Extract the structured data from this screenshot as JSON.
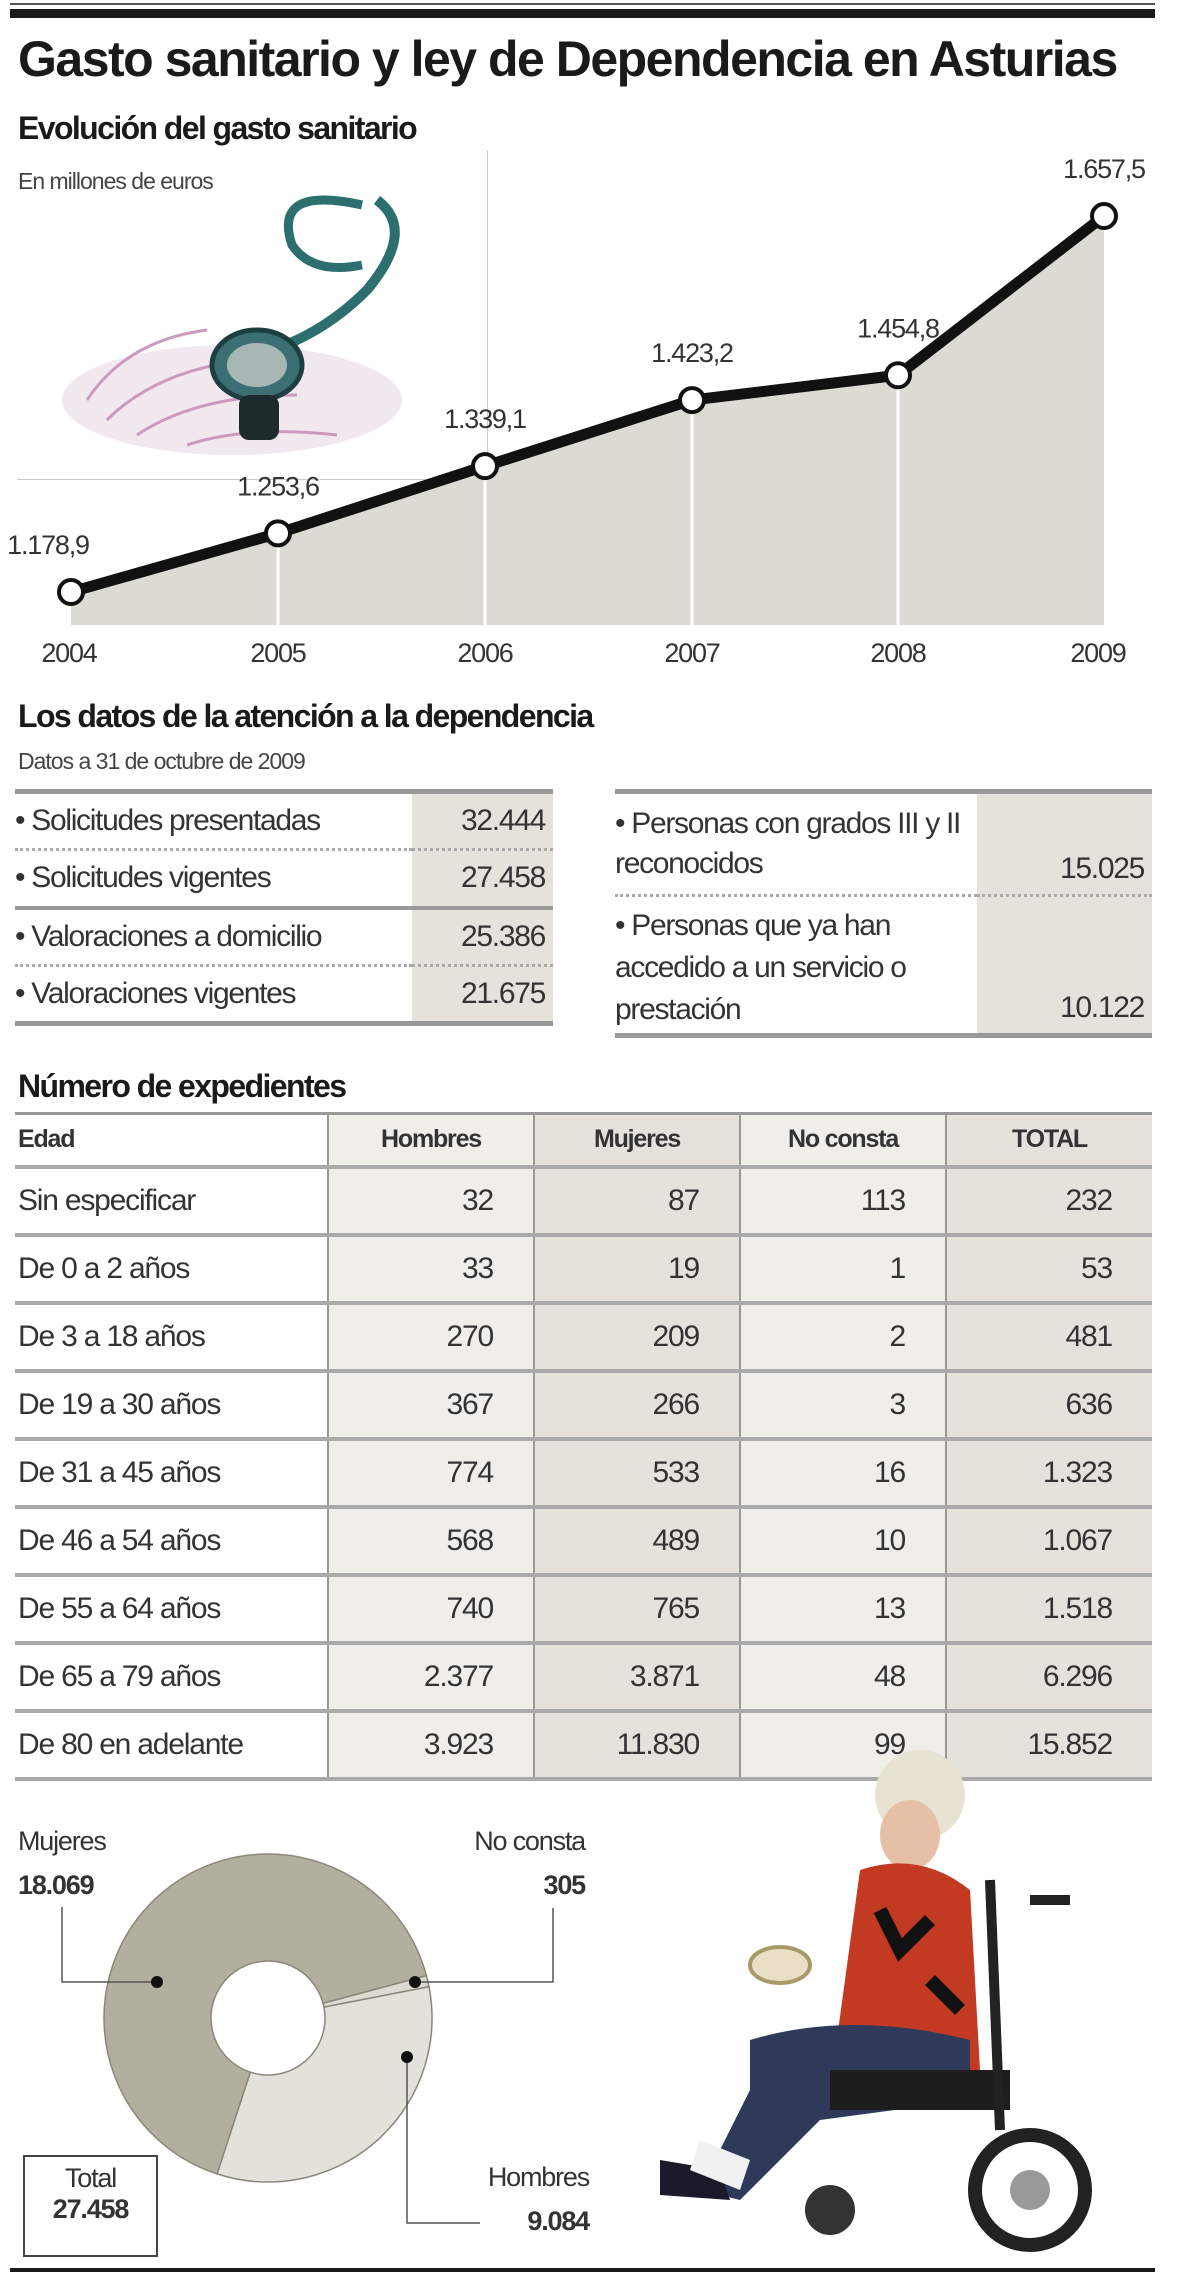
{
  "title": "Gasto sanitario y ley de Dependencia en Asturias",
  "chart_data": [
    {
      "type": "area",
      "title": "Evolución del gasto sanitario",
      "subtitle": "En millones de euros",
      "categories": [
        "2004",
        "2005",
        "2006",
        "2007",
        "2008",
        "2009"
      ],
      "values": [
        1178.9,
        1253.6,
        1339.1,
        1423.2,
        1454.8,
        1657.5
      ],
      "labels": [
        "1.178,9",
        "1.253,6",
        "1.339,1",
        "1.423,2",
        "1.454,8",
        "1.657,5"
      ],
      "grid": false,
      "colors": {
        "fill": "#dcdbd3",
        "line": "#111111"
      }
    },
    {
      "type": "pie",
      "donut": true,
      "slices": [
        {
          "name": "No consta",
          "value": 305,
          "label": "305",
          "color": "#dcdbd3"
        },
        {
          "name": "Hombres",
          "value": 9084,
          "label": "9.084",
          "color": "#e2e1da"
        },
        {
          "name": "Mujeres",
          "value": 18069,
          "label": "18.069",
          "color": "#b3af9f"
        }
      ],
      "total_label": "Total",
      "total_value": "27.458"
    }
  ],
  "dependencia": {
    "title": "Los datos de la atención a la dependencia",
    "subtitle": "Datos a 31 de octubre de 2009",
    "left": [
      {
        "label": "• Solicitudes presentadas",
        "value": "32.444"
      },
      {
        "label": "• Solicitudes vigentes",
        "value": "27.458"
      },
      {
        "label": "• Valoraciones a domicilio",
        "value": "25.386"
      },
      {
        "label": "• Valoraciones vigentes",
        "value": "21.675"
      }
    ],
    "right": [
      {
        "label": "• Personas con grados III y II reconocidos",
        "value": "15.025"
      },
      {
        "label": "• Personas que ya han accedido a un servicio o prestación",
        "value": "10.122"
      }
    ]
  },
  "expedientes": {
    "title": "Número de expedientes",
    "headers": [
      "Edad",
      "Hombres",
      "Mujeres",
      "No consta",
      "TOTAL"
    ],
    "rows": [
      [
        "Sin especificar",
        "32",
        "87",
        "113",
        "232"
      ],
      [
        "De 0 a 2 años",
        "33",
        "19",
        "1",
        "53"
      ],
      [
        "De 3 a 18 años",
        "270",
        "209",
        "2",
        "481"
      ],
      [
        "De 19 a 30 años",
        "367",
        "266",
        "3",
        "636"
      ],
      [
        "De 31 a 45 años",
        "774",
        "533",
        "16",
        "1.323"
      ],
      [
        "De 46 a 54 años",
        "568",
        "489",
        "10",
        "1.067"
      ],
      [
        "De 55 a 64 años",
        "740",
        "765",
        "13",
        "1.518"
      ],
      [
        "De 65 a 79 años",
        "2.377",
        "3.871",
        "48",
        "6.296"
      ],
      [
        "De 80 en adelante",
        "3.923",
        "11.830",
        "99",
        "15.852"
      ]
    ]
  },
  "images": {
    "top": "stethoscope-on-euro-notes-photo",
    "bottom": "elderly-woman-in-wheelchair-photo"
  }
}
